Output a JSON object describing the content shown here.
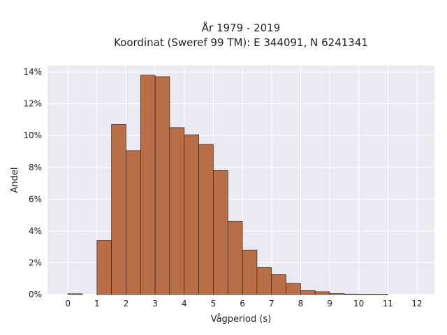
{
  "chart_data": {
    "type": "bar",
    "title": "År 1979 - 2019",
    "subtitle": "Koordinat (Sweref 99 TM): E 344091, N 6241341",
    "xlabel": "Vågperiod (s)",
    "ylabel": "Andel",
    "xlim": [
      -0.7,
      12.6
    ],
    "ylim": [
      0,
      14.4
    ],
    "x_ticks": [
      "0",
      "1",
      "2",
      "3",
      "4",
      "5",
      "6",
      "7",
      "8",
      "9",
      "10",
      "11",
      "12"
    ],
    "y_ticks": [
      "0%",
      "2%",
      "4%",
      "6%",
      "8%",
      "10%",
      "12%",
      "14%"
    ],
    "bin_width": 0.5,
    "bins": [
      {
        "start": 0.0,
        "value": 0.05
      },
      {
        "start": 1.0,
        "value": 3.4
      },
      {
        "start": 1.5,
        "value": 10.7
      },
      {
        "start": 2.0,
        "value": 9.05
      },
      {
        "start": 2.5,
        "value": 13.8
      },
      {
        "start": 3.0,
        "value": 13.7
      },
      {
        "start": 3.5,
        "value": 10.5
      },
      {
        "start": 4.0,
        "value": 10.05
      },
      {
        "start": 4.5,
        "value": 9.45
      },
      {
        "start": 5.0,
        "value": 7.8
      },
      {
        "start": 5.5,
        "value": 4.6
      },
      {
        "start": 6.0,
        "value": 2.8
      },
      {
        "start": 6.5,
        "value": 1.7
      },
      {
        "start": 7.0,
        "value": 1.25
      },
      {
        "start": 7.5,
        "value": 0.7
      },
      {
        "start": 8.0,
        "value": 0.25
      },
      {
        "start": 8.5,
        "value": 0.18
      },
      {
        "start": 9.0,
        "value": 0.06
      },
      {
        "start": 9.5,
        "value": 0.03
      },
      {
        "start": 10.0,
        "value": 0.02
      },
      {
        "start": 10.5,
        "value": 0.02
      }
    ],
    "grid": true,
    "colors": {
      "bar_fill": "#b86e46",
      "bar_edge": "#3a2318",
      "plot_background": "#eaeaf2",
      "grid": "#ffffff"
    }
  }
}
